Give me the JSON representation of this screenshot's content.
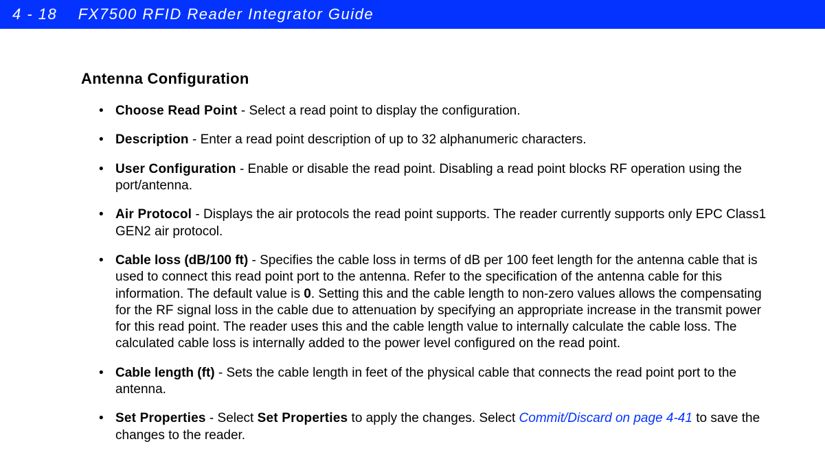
{
  "header": {
    "page_ref": "4 - 18",
    "doc_title": "FX7500 RFID Reader Integrator Guide"
  },
  "section": {
    "title": "Antenna Configuration"
  },
  "items": [
    {
      "term": "Choose Read Point",
      "term_style": "narrow",
      "pre": "",
      "body": " - Select a read point to display the configuration."
    },
    {
      "term": "Description",
      "term_style": "narrow",
      "pre": "",
      "body": " - Enter a read point description of up to 32 alphanumeric characters."
    },
    {
      "term": "User Configuration",
      "term_style": "narrow",
      "pre": "",
      "body": " - Enable or disable the read point. Disabling a read point blocks RF operation using the port/antenna."
    },
    {
      "term": "Air Protocol",
      "term_style": "narrow",
      "pre": "",
      "body": " - Displays the air protocols the read point supports. The reader currently supports only EPC Class1 GEN2 air protocol."
    },
    {
      "term": "Cable loss (dB/100 ft)",
      "term_style": "normal",
      "pre": "",
      "body_before_bold": " - Specifies the cable loss in terms of dB per 100 feet length for the antenna cable that is used to connect this read point port to the antenna. Refer to the specification of the antenna cable for this information. The default value is ",
      "bold_inline": "0",
      "body_after_bold": ". Setting this and the cable length to non-zero values allows the compensating for the RF signal loss in the cable due to attenuation by specifying an appropriate increase in the transmit power for this read point. The reader uses this and the cable length value to internally calculate the cable loss. The calculated cable loss is internally added to the power level configured on the read point."
    },
    {
      "term": "Cable length (ft)",
      "term_style": "normal",
      "pre": "",
      "body": " - Sets the cable length in feet of the physical cable that connects the read point port to the antenna."
    },
    {
      "term": "Set Properties",
      "term_style": "narrow",
      "pre": "",
      "body_before_bold": " - Select ",
      "bold_inline_narrow": "Set Properties",
      "body_mid": " to apply the changes. Select ",
      "xref": "Commit/Discard on page 4-41",
      "body_after_xref": " to save the changes to the reader."
    }
  ],
  "colors": {
    "header_bg": "#0433ff",
    "header_text": "#ffffff",
    "body_text": "#000000",
    "xref": "#0433ff",
    "page_bg": "#ffffff"
  },
  "typography": {
    "header_fontsize": 22,
    "title_fontsize": 22,
    "body_fontsize": 19,
    "line_height": 1.28
  }
}
